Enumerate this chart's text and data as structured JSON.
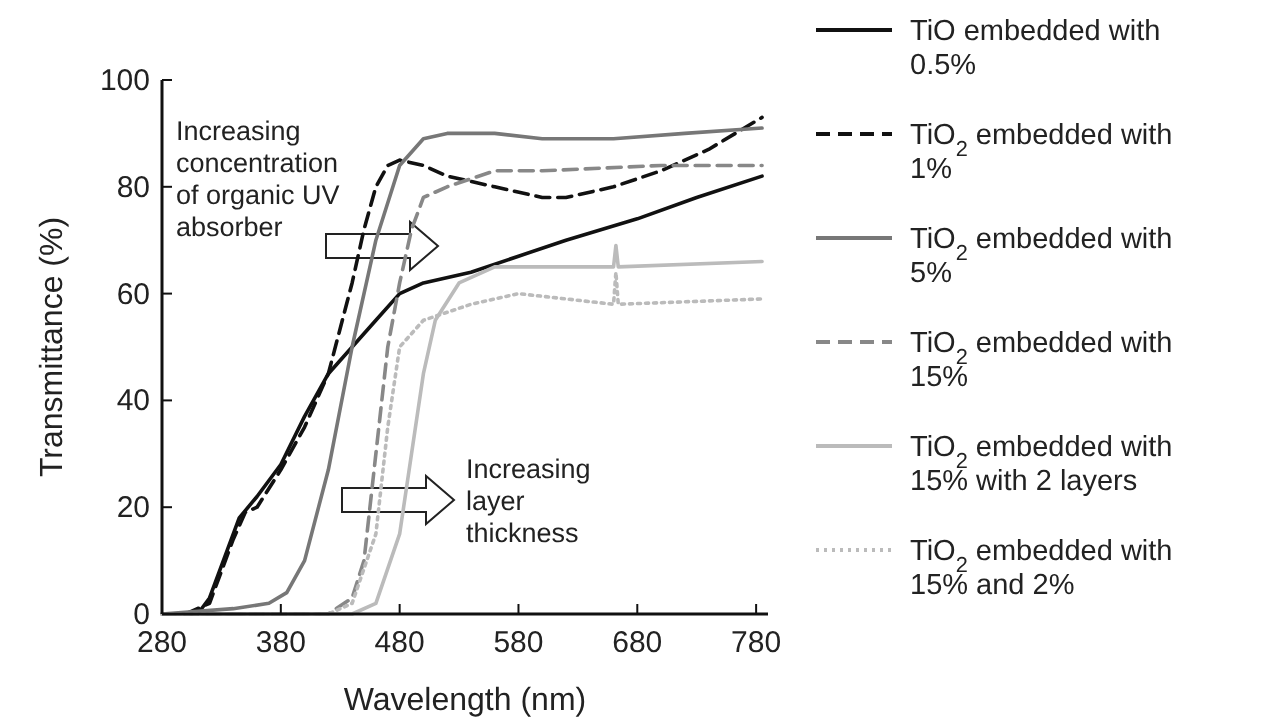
{
  "chart_data": {
    "type": "line",
    "xlabel": "Wavelength (nm)",
    "ylabel": "Transmittance (%)",
    "xlim": [
      280,
      790
    ],
    "ylim": [
      0,
      100
    ],
    "xticks": [
      280,
      380,
      480,
      580,
      680,
      780
    ],
    "yticks": [
      0,
      20,
      40,
      60,
      80,
      100
    ],
    "grid": false,
    "legend": "right",
    "annotations": [
      "Increasing concentration of organic UV absorber",
      "Increasing layer thickness"
    ],
    "series": [
      {
        "name": "TiO embedded with 0.5%",
        "color": "#111111",
        "line_style": "solid",
        "x": [
          300,
          310,
          320,
          335,
          345,
          360,
          380,
          400,
          420,
          440,
          460,
          480,
          500,
          540,
          580,
          620,
          680,
          730,
          785
        ],
        "values": [
          0,
          0,
          3,
          12,
          18,
          22,
          28,
          37,
          45,
          50,
          55,
          60,
          62,
          64,
          67,
          70,
          74,
          78,
          82
        ]
      },
      {
        "name": "TiO$_{2}$ embedded with 1%",
        "color": "#111111",
        "line_style": "dashed",
        "x": [
          300,
          320,
          340,
          350,
          360,
          380,
          400,
          420,
          440,
          450,
          460,
          470,
          480,
          500,
          520,
          560,
          600,
          620,
          660,
          700,
          740,
          785
        ],
        "values": [
          0,
          2,
          14,
          19,
          20,
          27,
          35,
          45,
          62,
          72,
          80,
          84,
          85,
          84,
          82,
          80,
          78,
          78,
          80,
          83,
          87,
          93
        ]
      },
      {
        "name": "TiO$_{2}$ embedded with 5%",
        "color": "#777777",
        "line_style": "solid",
        "x": [
          280,
          340,
          370,
          385,
          400,
          420,
          440,
          460,
          480,
          500,
          520,
          560,
          600,
          660,
          720,
          785
        ],
        "values": [
          0,
          1,
          2,
          4,
          10,
          27,
          50,
          70,
          84,
          89,
          90,
          90,
          89,
          89,
          90,
          91
        ]
      },
      {
        "name": "TiO$_{2}$ embedded with 15%",
        "color": "#888888",
        "line_style": "dashed",
        "x": [
          280,
          420,
          440,
          450,
          460,
          470,
          480,
          490,
          500,
          520,
          560,
          600,
          700,
          785
        ],
        "values": [
          0,
          0,
          3,
          10,
          30,
          50,
          62,
          72,
          78,
          80,
          83,
          83,
          84,
          84
        ]
      },
      {
        "name": "TiO$_{2}$ embedded with 15% with 2 layers",
        "color": "#bbbbbb",
        "line_style": "solid",
        "x": [
          280,
          440,
          460,
          480,
          490,
          500,
          510,
          530,
          560,
          580,
          660,
          662,
          664,
          785
        ],
        "values": [
          0,
          0,
          2,
          15,
          30,
          45,
          55,
          62,
          65,
          65,
          65,
          69,
          65,
          66
        ]
      },
      {
        "name": "TiO$_{2}$ embedded with 15% and 2%",
        "color": "#bbbbbb",
        "line_style": "dotted",
        "x": [
          280,
          420,
          440,
          460,
          470,
          480,
          500,
          540,
          580,
          620,
          660,
          662,
          664,
          785
        ],
        "values": [
          0,
          0,
          2,
          15,
          35,
          50,
          55,
          58,
          60,
          59,
          58,
          64,
          58,
          59
        ]
      }
    ]
  }
}
